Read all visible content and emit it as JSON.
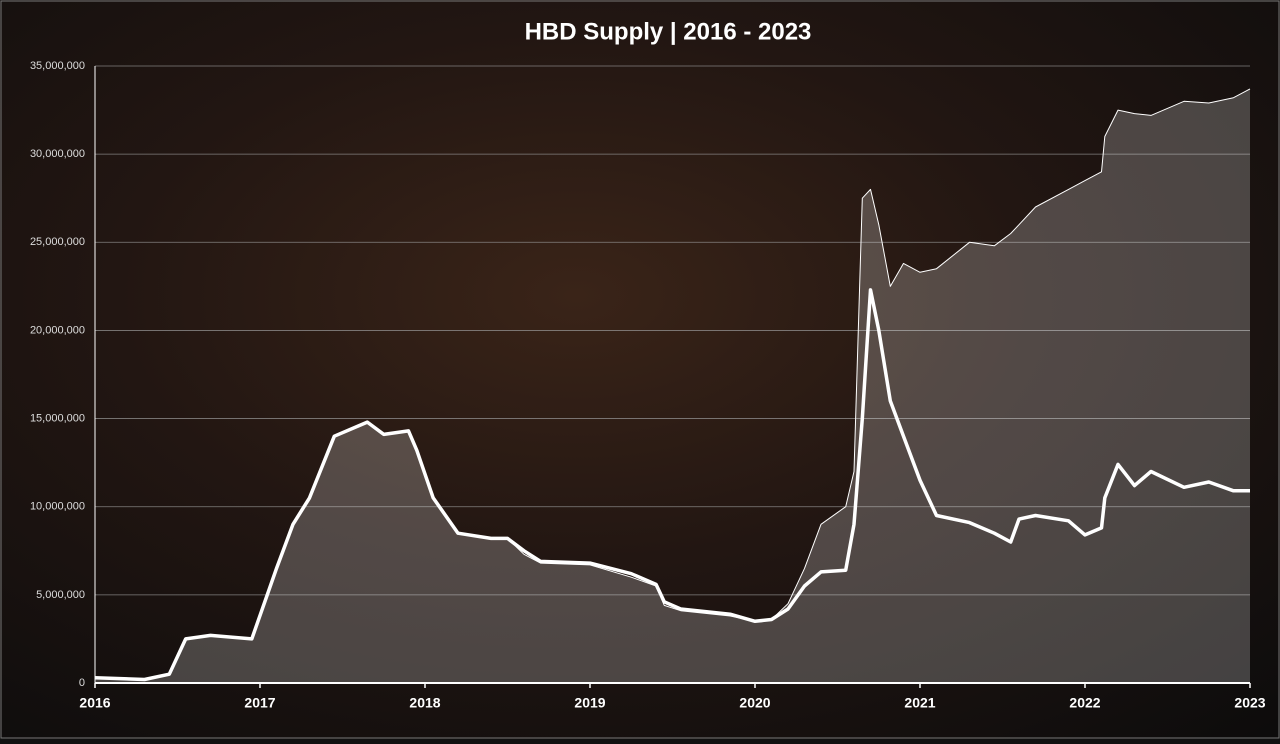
{
  "chart_data": {
    "type": "line",
    "title": "HBD Supply | 2016 - 2023",
    "x": [
      2016.0,
      2016.3,
      2016.45,
      2016.55,
      2016.7,
      2016.95,
      2017.1,
      2017.2,
      2017.3,
      2017.45,
      2017.65,
      2017.75,
      2017.9,
      2017.95,
      2018.05,
      2018.2,
      2018.4,
      2018.5,
      2018.6,
      2018.7,
      2019.0,
      2019.25,
      2019.4,
      2019.45,
      2019.55,
      2019.85,
      2020.0,
      2020.1,
      2020.2,
      2020.3,
      2020.4,
      2020.55,
      2020.6,
      2020.65,
      2020.7,
      2020.75,
      2020.82,
      2020.9,
      2021.0,
      2021.1,
      2021.3,
      2021.45,
      2021.55,
      2021.6,
      2021.7,
      2021.9,
      2022.0,
      2022.1,
      2022.12,
      2022.2,
      2022.3,
      2022.4,
      2022.6,
      2022.75,
      2022.9,
      2023.0
    ],
    "series": [
      {
        "color": "#ffffff",
        "area": true,
        "width": 1,
        "values": [
          300000,
          200000,
          500000,
          2500000,
          2700000,
          2500000,
          6500000,
          9000000,
          10500000,
          14000000,
          14800000,
          14100000,
          14300000,
          13200000,
          10500000,
          8500000,
          8200000,
          8200000,
          7300000,
          6800000,
          6700000,
          6000000,
          5500000,
          4400000,
          4100000,
          3800000,
          3500000,
          3600000,
          4500000,
          6500000,
          9000000,
          10000000,
          12000000,
          27500000,
          28000000,
          26000000,
          22500000,
          23800000,
          23300000,
          23500000,
          25000000,
          24800000,
          25500000,
          26000000,
          27000000,
          28000000,
          28500000,
          29000000,
          31000000,
          32500000,
          32300000,
          32200000,
          33000000,
          32900000,
          33200000,
          33700000
        ]
      },
      {
        "color": "#ffffff",
        "area": false,
        "width": 3.5,
        "values": [
          300000,
          200000,
          500000,
          2500000,
          2700000,
          2500000,
          6500000,
          9000000,
          10500000,
          14000000,
          14800000,
          14100000,
          14300000,
          13200000,
          10500000,
          8500000,
          8200000,
          8200000,
          7500000,
          6900000,
          6800000,
          6200000,
          5600000,
          4600000,
          4200000,
          3900000,
          3500000,
          3600000,
          4200000,
          5500000,
          6300000,
          6400000,
          9000000,
          15000000,
          22300000,
          20000000,
          16000000,
          14000000,
          11500000,
          9500000,
          9100000,
          8500000,
          8000000,
          9300000,
          9500000,
          9200000,
          8400000,
          8800000,
          10500000,
          12400000,
          11200000,
          12000000,
          11100000,
          11400000,
          10900000,
          10900000
        ]
      }
    ],
    "xlim": [
      2016,
      2023
    ],
    "xticks": [
      2016,
      2017,
      2018,
      2019,
      2020,
      2021,
      2022,
      2023
    ],
    "ylim": [
      0,
      35000000
    ],
    "yticks": [
      {
        "value": 0,
        "label": "0"
      },
      {
        "value": 5000000,
        "label": "5,000,000"
      },
      {
        "value": 10000000,
        "label": "10,000,000"
      },
      {
        "value": 15000000,
        "label": "15,000,000"
      },
      {
        "value": 20000000,
        "label": "20,000,000"
      },
      {
        "value": 25000000,
        "label": "25,000,000"
      },
      {
        "value": 30000000,
        "label": "30,000,000"
      },
      {
        "value": 35000000,
        "label": "35,000,000"
      }
    ],
    "grid": true
  }
}
